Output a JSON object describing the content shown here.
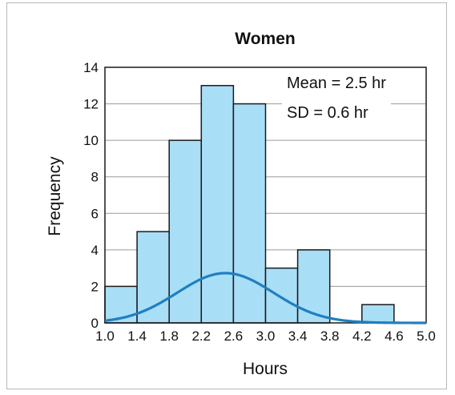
{
  "chart_data": {
    "type": "bar",
    "title": "Women",
    "xlabel": "Hours",
    "ylabel": "Frequency",
    "bin_edges": [
      1.0,
      1.4,
      1.8,
      2.2,
      2.6,
      3.0,
      3.4,
      3.8,
      4.2,
      4.6,
      5.0
    ],
    "values": [
      2,
      5,
      10,
      13,
      12,
      3,
      4,
      0,
      1,
      0
    ],
    "xlim": [
      1.0,
      5.0
    ],
    "ylim": [
      0,
      14
    ],
    "x_ticks": [
      "1.0",
      "1.4",
      "1.8",
      "2.2",
      "2.6",
      "3.0",
      "3.4",
      "3.8",
      "4.2",
      "4.6",
      "5.0"
    ],
    "y_ticks": [
      "0",
      "2",
      "4",
      "6",
      "8",
      "10",
      "12",
      "14"
    ],
    "grid": "horizontal",
    "curve": {
      "type": "normal",
      "mean": 2.5,
      "sd": 0.6,
      "scale": 4.1
    },
    "annotations": [
      "Mean = 2.5 hr",
      "SD = 0.6 hr"
    ],
    "colors": {
      "bar_fill": "#a9def7",
      "bar_stroke": "#1a1a1a",
      "curve": "#1f7fc1",
      "grid": "#9a9a9a"
    }
  }
}
